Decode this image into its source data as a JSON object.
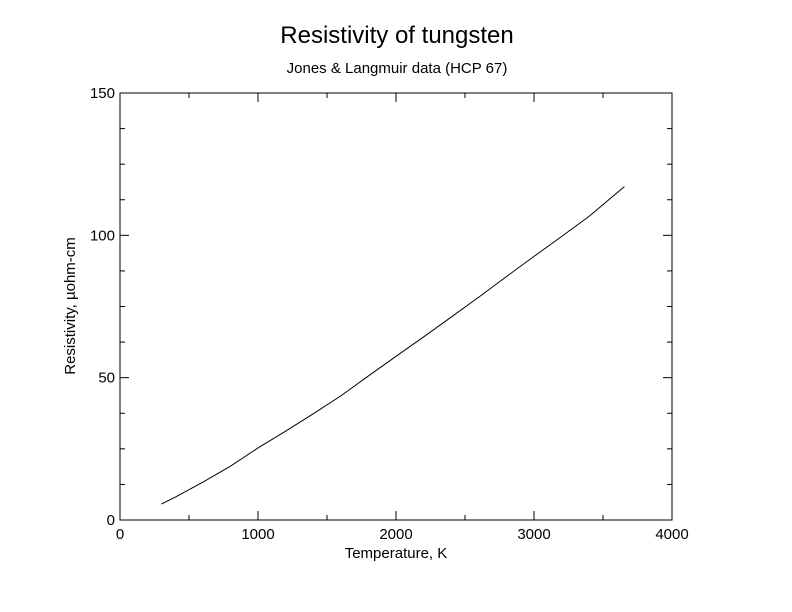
{
  "chart_data": {
    "type": "line",
    "title": "Resistivity of tungsten",
    "subtitle": "Jones & Langmuir data (HCP 67)",
    "x_label": "Temperature, K",
    "y_label": "Resistivity, µohm-cm",
    "x": [
      300,
      400,
      600,
      800,
      1000,
      1200,
      1400,
      1600,
      1800,
      2000,
      2200,
      2400,
      2600,
      2800,
      3000,
      3200,
      3400,
      3655
    ],
    "series": [
      {
        "color": "#000000",
        "values": [
          5.6,
          8.0,
          13.3,
          18.9,
          25.3,
          31.2,
          37.3,
          43.6,
          50.6,
          57.5,
          64.3,
          71.3,
          78.3,
          85.5,
          92.6,
          99.6,
          106.7,
          117.1
        ]
      }
    ],
    "xlim": [
      0,
      4000
    ],
    "xticks": [
      0,
      1000,
      2000,
      3000,
      4000
    ],
    "ylim": [
      0,
      150
    ],
    "yticks": [
      0,
      50,
      100,
      150
    ],
    "grid": false
  }
}
